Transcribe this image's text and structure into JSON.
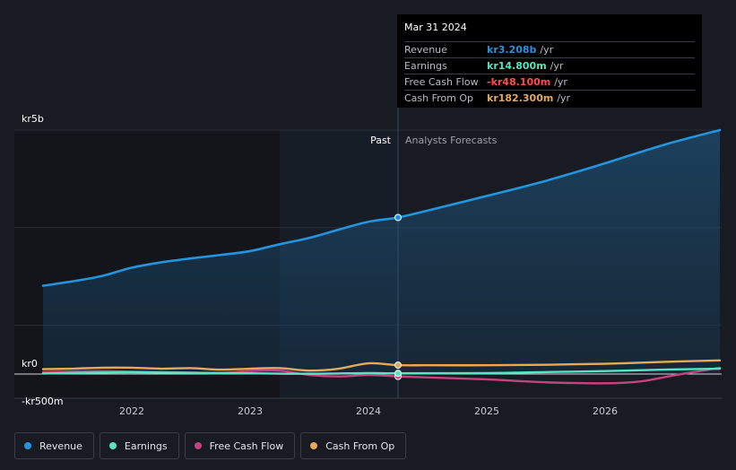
{
  "chart_data": {
    "type": "line",
    "x_unit": "year",
    "ylim": [
      -500,
      5000
    ],
    "y_ticks": [
      {
        "value": 5000,
        "label": "kr5b"
      },
      {
        "value": 0,
        "label": "kr0"
      },
      {
        "value": -500,
        "label": "-kr500m"
      }
    ],
    "x_ticks": [
      {
        "value": 2022,
        "label": "2022"
      },
      {
        "value": 2023,
        "label": "2023"
      },
      {
        "value": 2024,
        "label": "2024"
      },
      {
        "value": 2025,
        "label": "2025"
      },
      {
        "value": 2026,
        "label": "2026"
      }
    ],
    "past_label": "Past",
    "forecast_label": "Analysts Forecasts",
    "divider_x": 2024.25,
    "past_shade_start": 2023.25,
    "series": [
      {
        "name": "Revenue",
        "color": "#2394df",
        "area": true,
        "points": [
          [
            2021.25,
            1810
          ],
          [
            2021.5,
            1900
          ],
          [
            2021.75,
            2010
          ],
          [
            2022,
            2180
          ],
          [
            2022.25,
            2290
          ],
          [
            2022.5,
            2370
          ],
          [
            2022.75,
            2440
          ],
          [
            2023,
            2520
          ],
          [
            2023.25,
            2660
          ],
          [
            2023.5,
            2790
          ],
          [
            2023.75,
            2960
          ],
          [
            2024,
            3120
          ],
          [
            2024.25,
            3208
          ],
          [
            2024.5,
            3350
          ],
          [
            2025,
            3650
          ],
          [
            2025.5,
            3960
          ],
          [
            2026,
            4320
          ],
          [
            2026.5,
            4700
          ],
          [
            2026.97,
            5000
          ]
        ]
      },
      {
        "name": "Earnings",
        "color": "#58e3c1",
        "area": false,
        "points": [
          [
            2021.25,
            10
          ],
          [
            2021.75,
            30
          ],
          [
            2022,
            35
          ],
          [
            2022.5,
            25
          ],
          [
            2023,
            15
          ],
          [
            2023.5,
            5
          ],
          [
            2024,
            20
          ],
          [
            2024.25,
            14.8
          ],
          [
            2025,
            20
          ],
          [
            2025.5,
            40
          ],
          [
            2026,
            60
          ],
          [
            2026.5,
            90
          ],
          [
            2026.97,
            110
          ]
        ]
      },
      {
        "name": "Free Cash Flow",
        "color": "#c5427f",
        "area": false,
        "points": [
          [
            2021.25,
            40
          ],
          [
            2021.75,
            60
          ],
          [
            2022,
            50
          ],
          [
            2022.25,
            40
          ],
          [
            2022.5,
            30
          ],
          [
            2022.75,
            20
          ],
          [
            2023,
            60
          ],
          [
            2023.25,
            70
          ],
          [
            2023.5,
            -20
          ],
          [
            2023.75,
            -50
          ],
          [
            2024,
            -20
          ],
          [
            2024.25,
            -48.1
          ],
          [
            2024.5,
            -70
          ],
          [
            2025,
            -110
          ],
          [
            2025.5,
            -170
          ],
          [
            2026,
            -190
          ],
          [
            2026.3,
            -150
          ],
          [
            2026.6,
            -20
          ],
          [
            2026.97,
            130
          ]
        ]
      },
      {
        "name": "Cash From Op",
        "color": "#e8a85a",
        "area": false,
        "points": [
          [
            2021.25,
            100
          ],
          [
            2021.5,
            110
          ],
          [
            2021.75,
            130
          ],
          [
            2022,
            130
          ],
          [
            2022.25,
            110
          ],
          [
            2022.5,
            120
          ],
          [
            2022.75,
            90
          ],
          [
            2023,
            110
          ],
          [
            2023.25,
            120
          ],
          [
            2023.5,
            70
          ],
          [
            2023.75,
            110
          ],
          [
            2024,
            220
          ],
          [
            2024.25,
            182.3
          ],
          [
            2024.5,
            180
          ],
          [
            2025,
            180
          ],
          [
            2025.5,
            190
          ],
          [
            2026,
            210
          ],
          [
            2026.5,
            250
          ],
          [
            2026.97,
            280
          ]
        ]
      }
    ]
  },
  "tooltip": {
    "date": "Mar 31 2024",
    "rows": [
      {
        "label": "Revenue",
        "value": "kr3.208b",
        "unit": "/yr",
        "color": "#2394df"
      },
      {
        "label": "Earnings",
        "value": "kr14.800m",
        "unit": "/yr",
        "color": "#58e3c1"
      },
      {
        "label": "Free Cash Flow",
        "value": "-kr48.100m",
        "unit": "/yr",
        "color": "#ff4d4d"
      },
      {
        "label": "Cash From Op",
        "value": "kr182.300m",
        "unit": "/yr",
        "color": "#e8a85a"
      }
    ]
  },
  "legend": [
    {
      "label": "Revenue",
      "color": "#2394df"
    },
    {
      "label": "Earnings",
      "color": "#58e3c1"
    },
    {
      "label": "Free Cash Flow",
      "color": "#c5427f"
    },
    {
      "label": "Cash From Op",
      "color": "#e8a85a"
    }
  ]
}
